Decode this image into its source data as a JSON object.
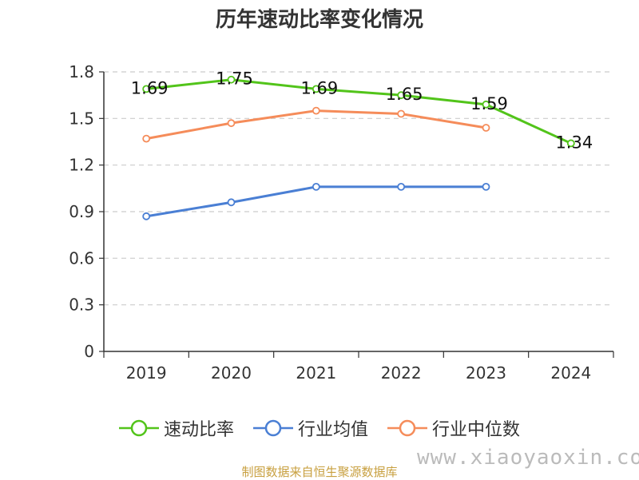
{
  "chart_data": {
    "type": "line",
    "title": "历年速动比率变化情况",
    "categories": [
      "2019",
      "2020",
      "2021",
      "2022",
      "2023",
      "2024"
    ],
    "ylim": [
      0,
      1.8
    ],
    "yticks": [
      "0",
      "0.3",
      "0.6",
      "0.9",
      "1.2",
      "1.5",
      "1.8"
    ],
    "grid": true,
    "legend_position": "bottom",
    "series": [
      {
        "name": "速动比率",
        "color": "#52c41a",
        "values": [
          1.69,
          1.75,
          1.69,
          1.65,
          1.59,
          1.34
        ],
        "labels": [
          "1.69",
          "1.75",
          "1.69",
          "1.65",
          "1.59",
          "1.34"
        ]
      },
      {
        "name": "行业均值",
        "color": "#4a7fd4",
        "values": [
          0.87,
          0.96,
          1.06,
          1.06,
          1.06,
          null
        ]
      },
      {
        "name": "行业中位数",
        "color": "#f58c5a",
        "values": [
          1.37,
          1.47,
          1.55,
          1.53,
          1.44,
          null
        ]
      }
    ]
  },
  "footer": {
    "source": "制图数据来自恒生聚源数据库",
    "watermark": "www.xiaoyaoxin.com"
  }
}
